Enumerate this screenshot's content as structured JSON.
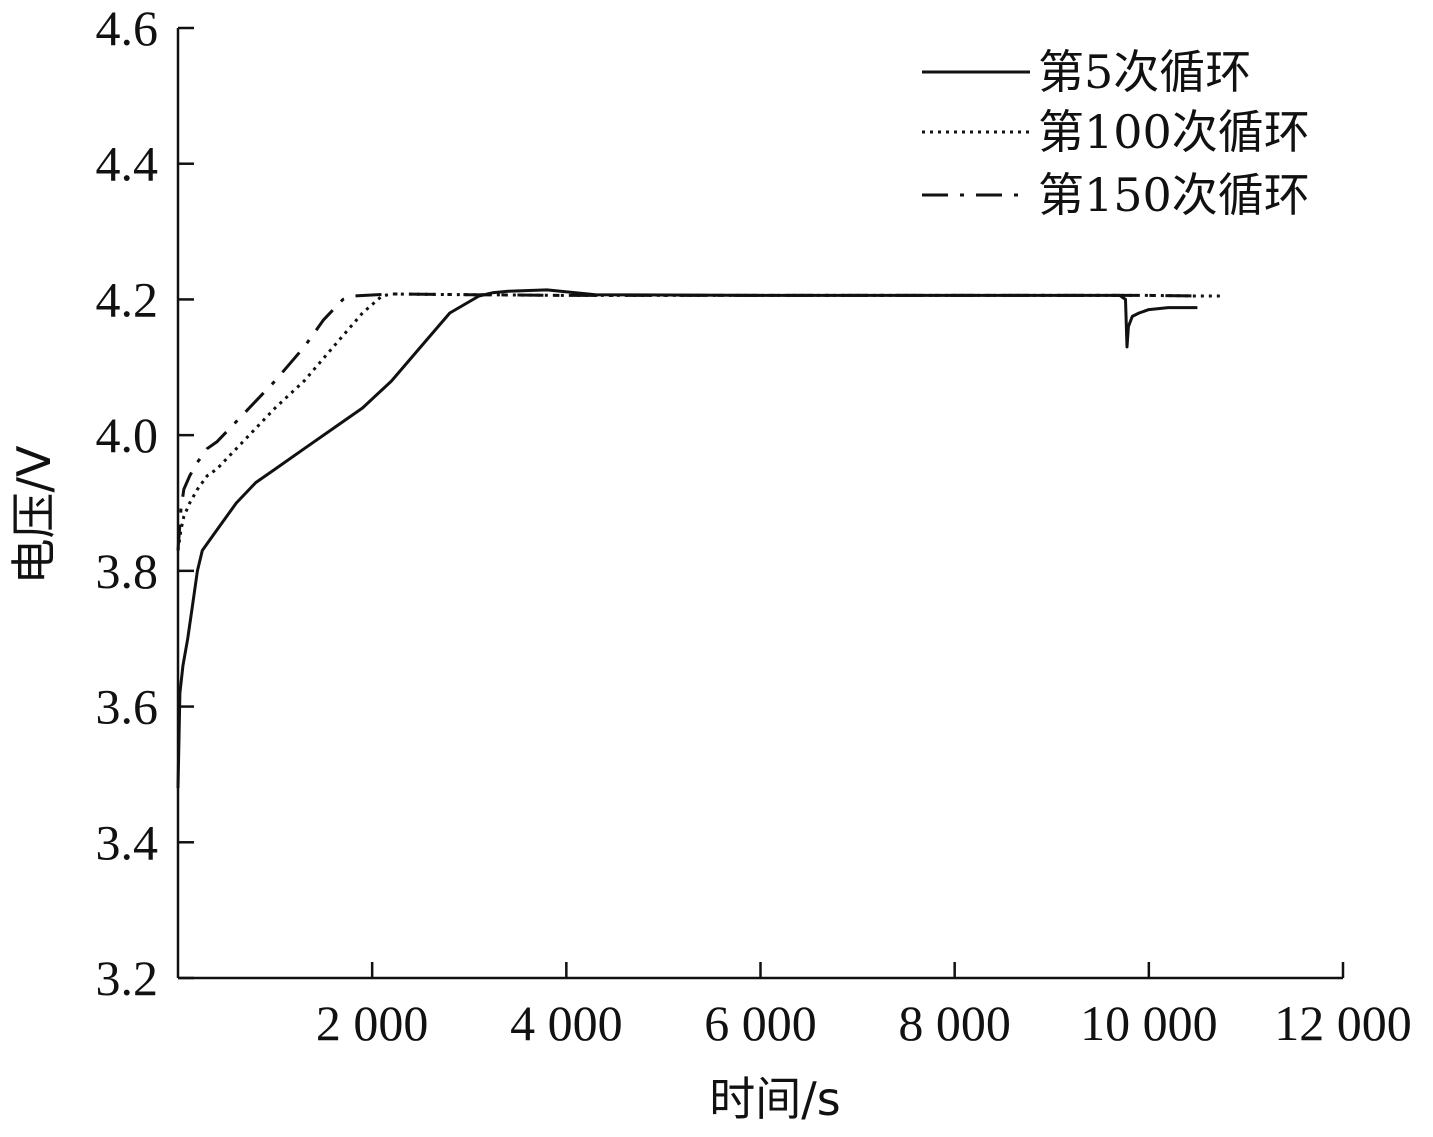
{
  "chart_data": {
    "type": "line",
    "xlabel": "时间/s",
    "ylabel": "电压/V",
    "xlim": [
      0,
      12000
    ],
    "ylim": [
      3.2,
      4.6
    ],
    "xticks": [
      2000,
      4000,
      6000,
      8000,
      10000,
      12000
    ],
    "xtick_labels": [
      "2 000",
      "4 000",
      "6 000",
      "8 000",
      "10 000",
      "12 000"
    ],
    "yticks": [
      3.2,
      3.4,
      3.6,
      3.8,
      4.0,
      4.2,
      4.4,
      4.6
    ],
    "ytick_labels": [
      "3.2",
      "3.4",
      "3.6",
      "3.8",
      "4.0",
      "4.2",
      "4.4",
      "4.6"
    ],
    "grid": false,
    "legend_position": "top-right",
    "series": [
      {
        "name": "第5次循环",
        "style": "solid",
        "x": [
          0,
          20,
          50,
          100,
          150,
          200,
          250,
          300,
          400,
          600,
          800,
          1000,
          1300,
          1600,
          1900,
          2200,
          2500,
          2800,
          3100,
          3250,
          3400,
          3800,
          4300,
          6000,
          8000,
          9700,
          9760,
          9775,
          9790,
          9830,
          9900,
          10000,
          10200,
          10500
        ],
        "y": [
          3.48,
          3.62,
          3.66,
          3.7,
          3.75,
          3.8,
          3.83,
          3.84,
          3.86,
          3.9,
          3.93,
          3.95,
          3.98,
          4.01,
          4.04,
          4.08,
          4.13,
          4.18,
          4.205,
          4.21,
          4.212,
          4.214,
          4.207,
          4.206,
          4.206,
          4.206,
          4.2,
          4.13,
          4.16,
          4.175,
          4.18,
          4.185,
          4.188,
          4.188
        ]
      },
      {
        "name": "第100次循环",
        "style": "dotted",
        "x": [
          0,
          30,
          60,
          120,
          200,
          300,
          400,
          600,
          800,
          1000,
          1300,
          1600,
          1900,
          2100,
          2200,
          3000,
          4000,
          6000,
          8000,
          10000,
          10500,
          10750
        ],
        "y": [
          3.83,
          3.86,
          3.88,
          3.9,
          3.92,
          3.94,
          3.95,
          3.98,
          4.01,
          4.04,
          4.08,
          4.13,
          4.18,
          4.205,
          4.208,
          4.207,
          4.206,
          4.206,
          4.206,
          4.206,
          4.205,
          4.205
        ]
      },
      {
        "name": "第150次循环",
        "style": "dashdot",
        "x": [
          0,
          30,
          60,
          120,
          200,
          300,
          400,
          600,
          800,
          1000,
          1300,
          1500,
          1700,
          1800,
          2200,
          3000,
          4000,
          6000,
          8000,
          10000,
          10500
        ],
        "y": [
          3.83,
          3.89,
          3.92,
          3.94,
          3.96,
          3.98,
          3.99,
          4.02,
          4.05,
          4.08,
          4.13,
          4.17,
          4.2,
          4.205,
          4.208,
          4.207,
          4.206,
          4.206,
          4.206,
          4.206,
          4.205
        ]
      }
    ]
  }
}
